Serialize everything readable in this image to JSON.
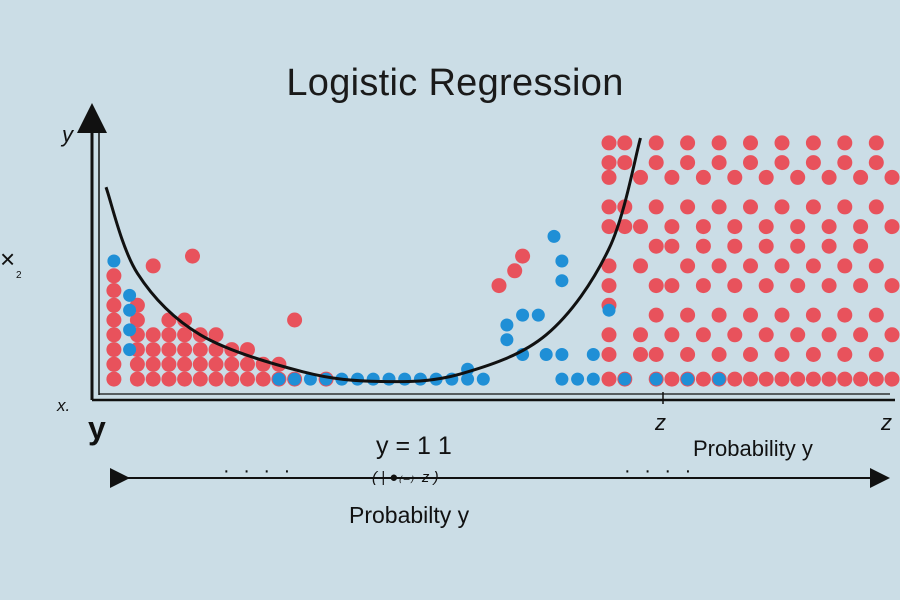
{
  "chart_data": {
    "type": "scatter",
    "title": "Logistic Regression",
    "labels": {
      "y_top": "y",
      "x_left": "x.",
      "y_bottom": "y",
      "edge_mark": "×",
      "edge_sub": "2",
      "z_mid": "z",
      "z_right": "z",
      "prob_right": "Probability y",
      "formula": "y = 1 1",
      "formula_sub": "( | ●₍₋₎–z )",
      "prob_bottom": "Probabilty y",
      "dots_left": "· · · ·",
      "dots_right": "· · · ·"
    },
    "xlim": [
      0,
      100
    ],
    "ylim": [
      0,
      100
    ],
    "grid": false,
    "legend": "none",
    "colors": {
      "red": "#e8525c",
      "blue": "#1f8fd6",
      "curve": "#111111"
    },
    "curve": [
      [
        0,
        80
      ],
      [
        4,
        45
      ],
      [
        12,
        20
      ],
      [
        25,
        5
      ],
      [
        35,
        1
      ],
      [
        45,
        4
      ],
      [
        56,
        20
      ],
      [
        64,
        55
      ],
      [
        68,
        100
      ]
    ],
    "series": [
      {
        "color": "red",
        "points": [
          [
            1,
            2
          ],
          [
            1,
            8
          ],
          [
            1,
            14
          ],
          [
            1,
            20
          ],
          [
            1,
            26
          ],
          [
            1,
            32
          ],
          [
            1,
            38
          ],
          [
            1,
            44
          ],
          [
            4,
            2
          ],
          [
            4,
            8
          ],
          [
            4,
            14
          ],
          [
            4,
            20
          ],
          [
            4,
            26
          ],
          [
            4,
            32
          ],
          [
            6,
            2
          ],
          [
            6,
            8
          ],
          [
            6,
            14
          ],
          [
            6,
            20
          ],
          [
            8,
            2
          ],
          [
            8,
            8
          ],
          [
            8,
            14
          ],
          [
            8,
            20
          ],
          [
            8,
            26
          ],
          [
            10,
            2
          ],
          [
            10,
            8
          ],
          [
            10,
            14
          ],
          [
            10,
            20
          ],
          [
            10,
            26
          ],
          [
            12,
            2
          ],
          [
            12,
            8
          ],
          [
            12,
            14
          ],
          [
            12,
            20
          ],
          [
            14,
            2
          ],
          [
            14,
            8
          ],
          [
            14,
            14
          ],
          [
            14,
            20
          ],
          [
            16,
            2
          ],
          [
            16,
            8
          ],
          [
            16,
            14
          ],
          [
            18,
            2
          ],
          [
            18,
            8
          ],
          [
            18,
            14
          ],
          [
            20,
            2
          ],
          [
            20,
            8
          ],
          [
            22,
            2
          ],
          [
            22,
            8
          ],
          [
            24,
            2
          ],
          [
            6,
            48
          ],
          [
            11,
            52
          ],
          [
            24,
            26
          ],
          [
            28,
            2
          ],
          [
            50,
            40
          ],
          [
            52,
            46
          ],
          [
            53,
            52
          ],
          [
            64,
            90
          ],
          [
            64,
            98
          ],
          [
            64,
            84
          ],
          [
            64,
            72
          ],
          [
            64,
            64
          ],
          [
            64,
            48
          ],
          [
            64,
            40
          ],
          [
            64,
            32
          ],
          [
            64,
            20
          ],
          [
            64,
            12
          ],
          [
            64,
            2
          ],
          [
            66,
            98
          ],
          [
            66,
            90
          ],
          [
            66,
            72
          ],
          [
            66,
            64
          ],
          [
            66,
            2
          ],
          [
            68,
            84
          ],
          [
            68,
            64
          ],
          [
            68,
            48
          ],
          [
            68,
            20
          ],
          [
            68,
            12
          ],
          [
            70,
            98
          ],
          [
            70,
            90
          ],
          [
            70,
            72
          ],
          [
            70,
            56
          ],
          [
            70,
            40
          ],
          [
            70,
            28
          ],
          [
            70,
            12
          ],
          [
            70,
            2
          ],
          [
            72,
            84
          ],
          [
            72,
            64
          ],
          [
            72,
            56
          ],
          [
            72,
            40
          ],
          [
            72,
            20
          ],
          [
            72,
            2
          ],
          [
            74,
            98
          ],
          [
            74,
            90
          ],
          [
            74,
            72
          ],
          [
            74,
            48
          ],
          [
            74,
            28
          ],
          [
            74,
            12
          ],
          [
            74,
            2
          ],
          [
            76,
            84
          ],
          [
            76,
            64
          ],
          [
            76,
            56
          ],
          [
            76,
            40
          ],
          [
            76,
            20
          ],
          [
            76,
            2
          ],
          [
            78,
            98
          ],
          [
            78,
            90
          ],
          [
            78,
            72
          ],
          [
            78,
            48
          ],
          [
            78,
            28
          ],
          [
            78,
            12
          ],
          [
            78,
            2
          ],
          [
            80,
            84
          ],
          [
            80,
            64
          ],
          [
            80,
            56
          ],
          [
            80,
            40
          ],
          [
            80,
            20
          ],
          [
            80,
            2
          ],
          [
            82,
            98
          ],
          [
            82,
            90
          ],
          [
            82,
            72
          ],
          [
            82,
            48
          ],
          [
            82,
            28
          ],
          [
            82,
            12
          ],
          [
            82,
            2
          ],
          [
            84,
            84
          ],
          [
            84,
            64
          ],
          [
            84,
            56
          ],
          [
            84,
            40
          ],
          [
            84,
            20
          ],
          [
            84,
            2
          ],
          [
            86,
            98
          ],
          [
            86,
            90
          ],
          [
            86,
            72
          ],
          [
            86,
            48
          ],
          [
            86,
            28
          ],
          [
            86,
            12
          ],
          [
            86,
            2
          ],
          [
            88,
            84
          ],
          [
            88,
            64
          ],
          [
            88,
            56
          ],
          [
            88,
            40
          ],
          [
            88,
            20
          ],
          [
            88,
            2
          ],
          [
            90,
            98
          ],
          [
            90,
            90
          ],
          [
            90,
            72
          ],
          [
            90,
            48
          ],
          [
            90,
            28
          ],
          [
            90,
            12
          ],
          [
            90,
            2
          ],
          [
            92,
            84
          ],
          [
            92,
            64
          ],
          [
            92,
            56
          ],
          [
            92,
            40
          ],
          [
            92,
            20
          ],
          [
            92,
            2
          ],
          [
            94,
            98
          ],
          [
            94,
            90
          ],
          [
            94,
            72
          ],
          [
            94,
            48
          ],
          [
            94,
            28
          ],
          [
            94,
            12
          ],
          [
            94,
            2
          ],
          [
            96,
            84
          ],
          [
            96,
            64
          ],
          [
            96,
            56
          ],
          [
            96,
            40
          ],
          [
            96,
            20
          ],
          [
            96,
            2
          ],
          [
            98,
            98
          ],
          [
            98,
            90
          ],
          [
            98,
            72
          ],
          [
            98,
            48
          ],
          [
            98,
            28
          ],
          [
            98,
            12
          ],
          [
            98,
            2
          ],
          [
            100,
            84
          ],
          [
            100,
            64
          ],
          [
            100,
            40
          ],
          [
            100,
            20
          ],
          [
            100,
            2
          ]
        ]
      },
      {
        "color": "blue",
        "points": [
          [
            1,
            50
          ],
          [
            3,
            36
          ],
          [
            3,
            30
          ],
          [
            3,
            22
          ],
          [
            3,
            14
          ],
          [
            22,
            2
          ],
          [
            24,
            2
          ],
          [
            26,
            2
          ],
          [
            28,
            2
          ],
          [
            30,
            2
          ],
          [
            32,
            2
          ],
          [
            34,
            2
          ],
          [
            36,
            2
          ],
          [
            38,
            2
          ],
          [
            40,
            2
          ],
          [
            42,
            2
          ],
          [
            44,
            2
          ],
          [
            46,
            2
          ],
          [
            48,
            2
          ],
          [
            46,
            6
          ],
          [
            51,
            24
          ],
          [
            53,
            28
          ],
          [
            55,
            28
          ],
          [
            51,
            18
          ],
          [
            53,
            12
          ],
          [
            58,
            2
          ],
          [
            60,
            2
          ],
          [
            62,
            2
          ],
          [
            56,
            12
          ],
          [
            58,
            12
          ],
          [
            62,
            12
          ],
          [
            57,
            60
          ],
          [
            58,
            50
          ],
          [
            58,
            42
          ],
          [
            64,
            30
          ],
          [
            66,
            2
          ],
          [
            70,
            2
          ],
          [
            74,
            2
          ],
          [
            78,
            2
          ]
        ]
      }
    ]
  }
}
